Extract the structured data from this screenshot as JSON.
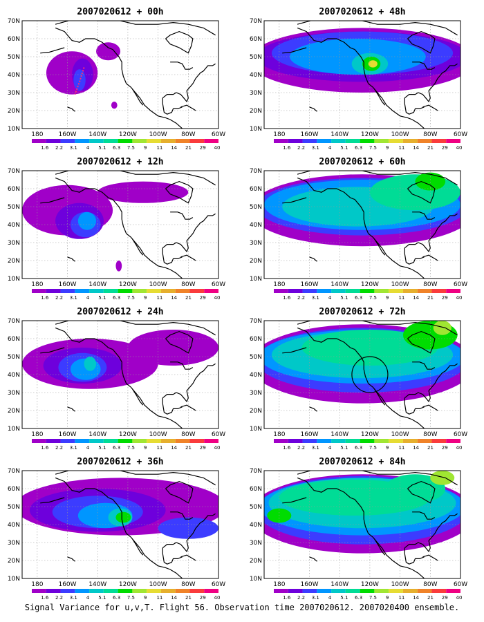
{
  "figure": {
    "caption": "Signal Variance for u,v,T. Flight 56. Observation time 2007020612. 2007020400 ensemble.",
    "latitude_labels": [
      "10N",
      "20N",
      "30N",
      "40N",
      "50N",
      "60N",
      "70N"
    ],
    "longitude_labels": [
      "180",
      "160W",
      "140W",
      "120W",
      "100W",
      "80W",
      "60W"
    ],
    "colorbar": {
      "labels": [
        "1.6",
        "2.2",
        "3.1",
        "4",
        "5.1",
        "6.3",
        "7.5",
        "9",
        "11",
        "14",
        "21",
        "29",
        "40"
      ],
      "colors": [
        "#a000c8",
        "#6e00dc",
        "#3c3cff",
        "#0096ff",
        "#00c8c8",
        "#00dc96",
        "#00dc00",
        "#a0e632",
        "#e6dc32",
        "#e6af2d",
        "#f08228",
        "#fa3c3c",
        "#f00082"
      ]
    },
    "panels": [
      {
        "title": "2007020612 + 00h",
        "lead": 0
      },
      {
        "title": "2007020612 + 48h",
        "lead": 48
      },
      {
        "title": "2007020612 + 12h",
        "lead": 12
      },
      {
        "title": "2007020612 + 60h",
        "lead": 60
      },
      {
        "title": "2007020612 + 24h",
        "lead": 24
      },
      {
        "title": "2007020612 + 72h",
        "lead": 72
      },
      {
        "title": "2007020612 + 36h",
        "lead": 36
      },
      {
        "title": "2007020612 + 84h",
        "lead": 84
      }
    ]
  }
}
